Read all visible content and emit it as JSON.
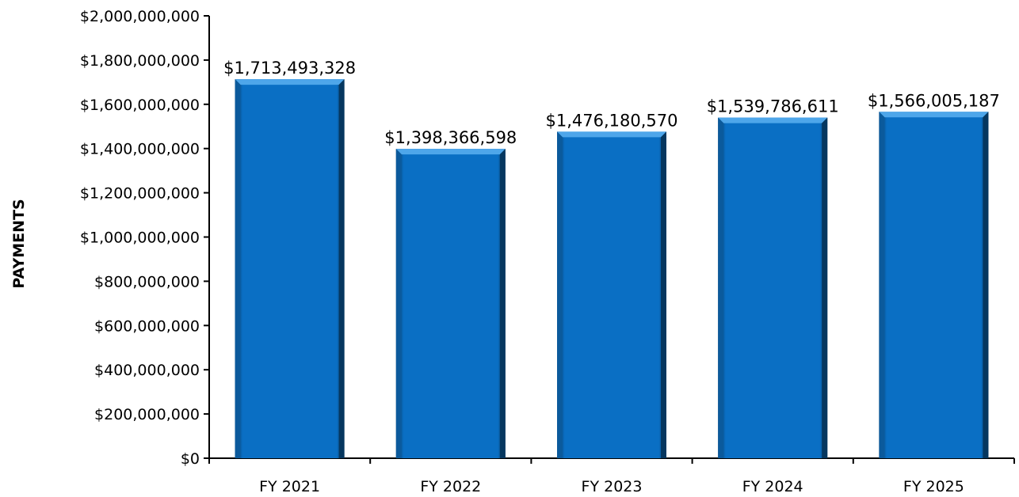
{
  "chart_data": {
    "type": "bar",
    "title": "",
    "xlabel": "",
    "ylabel": "PAYMENTS",
    "categories": [
      "FY 2021",
      "FY 2022",
      "FY 2023",
      "FY 2024",
      "FY 2025"
    ],
    "values": [
      1713493328,
      1398366598,
      1476180570,
      1539786611,
      1566005187
    ],
    "data_labels": [
      "$1,713,493,328",
      "$1,398,366,598",
      "$1,476,180,570",
      "$1,539,786,611",
      "$1,566,005,187"
    ],
    "ylim": [
      0,
      2000000000
    ],
    "yticks": [
      0,
      200000000,
      400000000,
      600000000,
      800000000,
      1000000000,
      1200000000,
      1400000000,
      1600000000,
      1800000000,
      2000000000
    ],
    "ytick_labels": [
      "$0",
      "$200,000,000",
      "$400,000,000",
      "$600,000,000",
      "$800,000,000",
      "$1,000,000,000",
      "$1,200,000,000",
      "$1,400,000,000",
      "$1,600,000,000",
      "$1,800,000,000",
      "$2,000,000,000"
    ],
    "grid": false,
    "legend": "none",
    "bar_color": "#0a6fc4",
    "bar_color_light": "#4ea6ea",
    "bar_color_dark": "#06375f"
  }
}
